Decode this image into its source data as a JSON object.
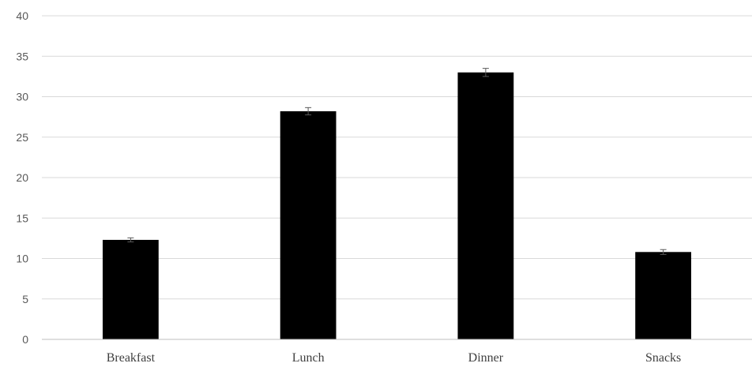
{
  "chart_data": {
    "type": "bar",
    "categories": [
      "Breakfast",
      "Lunch",
      "Dinner",
      "Snacks"
    ],
    "values": [
      12.3,
      28.2,
      33.0,
      10.8
    ],
    "errors": [
      0.25,
      0.45,
      0.5,
      0.3
    ],
    "title": "",
    "xlabel": "",
    "ylabel": "",
    "ylim": [
      0,
      40
    ],
    "yticks": [
      0,
      5,
      10,
      15,
      20,
      25,
      30,
      35,
      40
    ],
    "grid": true,
    "legend": "none",
    "colors": {
      "bar": "#000000",
      "grid": "#d9d9d9",
      "errorbar": "#595959"
    }
  }
}
